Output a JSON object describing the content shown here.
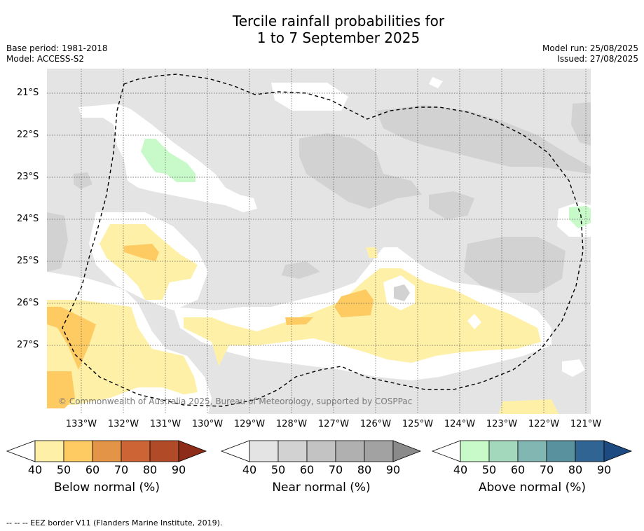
{
  "title_line1": "Tercile rainfall probabilities for",
  "title_line2": "1 to 7 September 2025",
  "meta": {
    "base_period": "Base period: 1981-2018",
    "model": "Model: ACCESS-S2",
    "model_run": "Model run: 25/08/2025",
    "issued": "Issued: 27/08/2025"
  },
  "attribution": "© Commonwealth of Australia 2025, Bureau of Meteorology, supported by COSPPac",
  "footer": "--  --  -- EEZ border V11 (Flanders Marine Institute, 2019).",
  "map": {
    "lon_ticks": [
      "133°W",
      "132°W",
      "131°W",
      "130°W",
      "129°W",
      "128°W",
      "127°W",
      "126°W",
      "125°W",
      "124°W",
      "123°W",
      "122°W",
      "121°W"
    ],
    "lat_ticks": [
      "21°S",
      "22°S",
      "23°S",
      "24°S",
      "25°S",
      "26°S",
      "27°S"
    ]
  },
  "colorbars": [
    {
      "label": "Below normal (%)",
      "ticks": [
        "40",
        "50",
        "60",
        "70",
        "80",
        "90"
      ],
      "colors": [
        "#fff0a8",
        "#fecb63",
        "#e39446",
        "#cc6435",
        "#b14a27",
        "#8d2c19"
      ]
    },
    {
      "label": "Near normal (%)",
      "ticks": [
        "40",
        "50",
        "60",
        "70",
        "80",
        "90"
      ],
      "colors": [
        "#e4e4e4",
        "#d2d2d2",
        "#c3c3c3",
        "#b0b0b0",
        "#a2a2a2",
        "#8a8a8a"
      ]
    },
    {
      "label": "Above normal (%)",
      "ticks": [
        "40",
        "50",
        "60",
        "70",
        "80",
        "90"
      ],
      "colors": [
        "#c8f9c8",
        "#a4d8bc",
        "#82b6b2",
        "#5a919e",
        "#306493",
        "#1d4a80"
      ]
    }
  ],
  "colors": {
    "near_base": "#e4e4e4",
    "near_dark": "#d2d2d2",
    "below_40": "#fff0a8",
    "below_50": "#fecb63",
    "above_40": "#c8f9c8"
  }
}
